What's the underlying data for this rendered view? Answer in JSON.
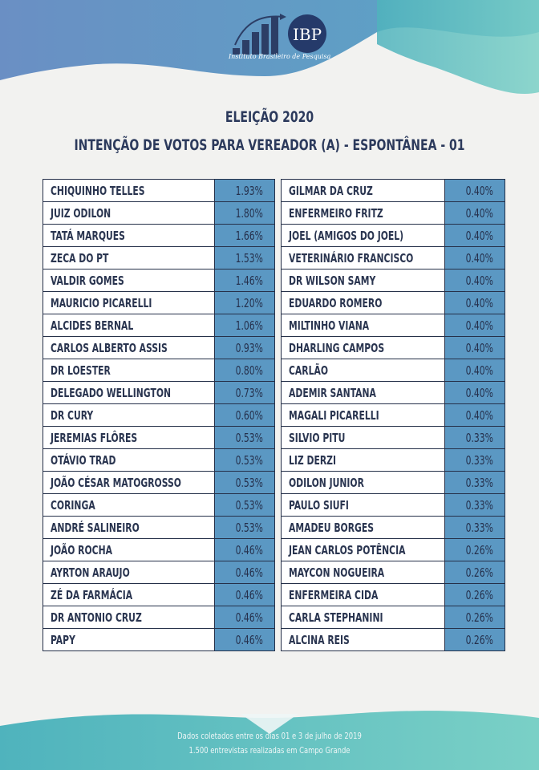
{
  "logo": {
    "text": "Instituto Brasileiro de Pesquisa",
    "mark": "IBP"
  },
  "title": {
    "line1": "ELEIÇÃO 2020",
    "line2": "INTENÇÃO DE VOTOS PARA VEREADOR (A) - ESPONTÂNEA - 01"
  },
  "colors": {
    "percent_cell": "#5b98c3",
    "border": "#253049",
    "text": "#2a3550",
    "top_wave": "#5f8fc0",
    "teal": "#6cc3c1"
  },
  "left_table": [
    {
      "name": "CHIQUINHO TELLES",
      "pct": "1.93%"
    },
    {
      "name": "JUIZ ODILON",
      "pct": "1.80%"
    },
    {
      "name": "TATÁ MARQUES",
      "pct": "1.66%"
    },
    {
      "name": "ZECA DO PT",
      "pct": "1.53%"
    },
    {
      "name": "VALDIR GOMES",
      "pct": "1.46%"
    },
    {
      "name": "MAURICIO PICARELLI",
      "pct": "1.20%"
    },
    {
      "name": "ALCIDES BERNAL",
      "pct": "1.06%"
    },
    {
      "name": "CARLOS ALBERTO ASSIS",
      "pct": "0.93%"
    },
    {
      "name": "DR LOESTER",
      "pct": "0.80%"
    },
    {
      "name": "DELEGADO WELLINGTON",
      "pct": "0.73%"
    },
    {
      "name": "DR CURY",
      "pct": "0.60%"
    },
    {
      "name": "JEREMIAS FLÔRES",
      "pct": "0.53%"
    },
    {
      "name": "OTÁVIO TRAD",
      "pct": "0.53%"
    },
    {
      "name": "JOÃO CÉSAR MATOGROSSO",
      "pct": "0.53%"
    },
    {
      "name": "CORINGA",
      "pct": "0.53%"
    },
    {
      "name": "ANDRÉ SALINEIRO",
      "pct": "0.53%"
    },
    {
      "name": "JOÃO ROCHA",
      "pct": "0.46%"
    },
    {
      "name": "AYRTON ARAUJO",
      "pct": "0.46%"
    },
    {
      "name": "ZÉ DA FARMÁCIA",
      "pct": "0.46%"
    },
    {
      "name": "DR ANTONIO CRUZ",
      "pct": "0.46%"
    },
    {
      "name": "PAPY",
      "pct": "0.46%"
    }
  ],
  "right_table": [
    {
      "name": "GILMAR DA CRUZ",
      "pct": "0.40%"
    },
    {
      "name": "ENFERMEIRO FRITZ",
      "pct": "0.40%"
    },
    {
      "name": "JOEL (AMIGOS DO JOEL)",
      "pct": "0.40%"
    },
    {
      "name": "VETERINÁRIO FRANCISCO",
      "pct": "0.40%"
    },
    {
      "name": "DR WILSON SAMY",
      "pct": "0.40%"
    },
    {
      "name": "EDUARDO ROMERO",
      "pct": "0.40%"
    },
    {
      "name": "MILTINHO VIANA",
      "pct": "0.40%"
    },
    {
      "name": "DHARLING CAMPOS",
      "pct": "0.40%"
    },
    {
      "name": "CARLÃO",
      "pct": "0.40%"
    },
    {
      "name": "ADEMIR SANTANA",
      "pct": "0.40%"
    },
    {
      "name": "MAGALI PICARELLI",
      "pct": "0.40%"
    },
    {
      "name": "SILVIO PITU",
      "pct": "0.33%"
    },
    {
      "name": "LIZ DERZI",
      "pct": "0.33%"
    },
    {
      "name": "ODILON JUNIOR",
      "pct": "0.33%"
    },
    {
      "name": "PAULO SIUFI",
      "pct": "0.33%"
    },
    {
      "name": "AMADEU BORGES",
      "pct": "0.33%"
    },
    {
      "name": "JEAN CARLOS POTÊNCIA",
      "pct": "0.26%"
    },
    {
      "name": "MAYCON NOGUEIRA",
      "pct": "0.26%"
    },
    {
      "name": "ENFERMEIRA CIDA",
      "pct": "0.26%"
    },
    {
      "name": "CARLA STEPHANINI",
      "pct": "0.26%"
    },
    {
      "name": "ALCINA REIS",
      "pct": "0.26%"
    }
  ],
  "footer": {
    "line1": "Dados coletados entre os dias 01 e 3 de julho de 2019",
    "line2": "1.500 entrevistas realizadas em Campo Grande"
  }
}
